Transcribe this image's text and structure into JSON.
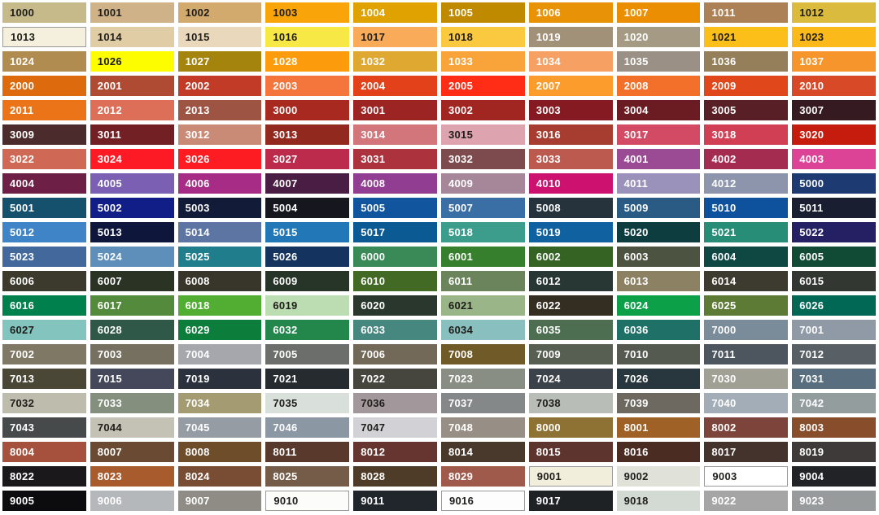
{
  "chart_data": {
    "type": "table",
    "rows": 21,
    "columns": 10,
    "legend_position": "none",
    "styles": {
      "gap_color": "#ffffff",
      "dark_text": "#1e1d1a",
      "light_text": "#ffffff",
      "light_swatch_border": "#9a9a9a"
    },
    "cells": [
      {
        "code": "1000",
        "bg": "#C6BA8B",
        "fg": "d"
      },
      {
        "code": "1001",
        "bg": "#CFB287",
        "fg": "d"
      },
      {
        "code": "1002",
        "bg": "#D3AA6E",
        "fg": "d"
      },
      {
        "code": "1003",
        "bg": "#F9A408",
        "fg": "d"
      },
      {
        "code": "1004",
        "bg": "#E0A200",
        "fg": "l"
      },
      {
        "code": "1005",
        "bg": "#C08A00",
        "fg": "l"
      },
      {
        "code": "1006",
        "bg": "#E89307",
        "fg": "l"
      },
      {
        "code": "1007",
        "bg": "#EC8E01",
        "fg": "l"
      },
      {
        "code": "1011",
        "bg": "#AC8156",
        "fg": "l"
      },
      {
        "code": "1012",
        "bg": "#DBBB3E",
        "fg": "d"
      },
      {
        "code": "1013",
        "bg": "#F5F0DE",
        "fg": "d",
        "bd": true
      },
      {
        "code": "1014",
        "bg": "#E0CDA5",
        "fg": "d"
      },
      {
        "code": "1015",
        "bg": "#E9D8BC",
        "fg": "d"
      },
      {
        "code": "1016",
        "bg": "#F7E845",
        "fg": "d"
      },
      {
        "code": "1017",
        "bg": "#FAAB59",
        "fg": "d"
      },
      {
        "code": "1018",
        "bg": "#FBC940",
        "fg": "d"
      },
      {
        "code": "1019",
        "bg": "#A29179",
        "fg": "l"
      },
      {
        "code": "1020",
        "bg": "#A59A83",
        "fg": "l"
      },
      {
        "code": "1021",
        "bg": "#FCBE19",
        "fg": "d"
      },
      {
        "code": "1023",
        "bg": "#FBBA19",
        "fg": "d"
      },
      {
        "code": "1024",
        "bg": "#B08C51",
        "fg": "l"
      },
      {
        "code": "1026",
        "bg": "#FEFD00",
        "fg": "d"
      },
      {
        "code": "1027",
        "bg": "#A5840D",
        "fg": "l"
      },
      {
        "code": "1028",
        "bg": "#FC9C0D",
        "fg": "l"
      },
      {
        "code": "1032",
        "bg": "#DFA831",
        "fg": "l"
      },
      {
        "code": "1033",
        "bg": "#F9A43B",
        "fg": "l"
      },
      {
        "code": "1034",
        "bg": "#F7A063",
        "fg": "l"
      },
      {
        "code": "1035",
        "bg": "#9A9086",
        "fg": "l"
      },
      {
        "code": "1036",
        "bg": "#957F5B",
        "fg": "l"
      },
      {
        "code": "1037",
        "bg": "#F5952B",
        "fg": "l"
      },
      {
        "code": "2000",
        "bg": "#DD6B0D",
        "fg": "l"
      },
      {
        "code": "2001",
        "bg": "#B04B33",
        "fg": "l"
      },
      {
        "code": "2002",
        "bg": "#C23B26",
        "fg": "l"
      },
      {
        "code": "2003",
        "bg": "#F5763C",
        "fg": "l"
      },
      {
        "code": "2004",
        "bg": "#E34119",
        "fg": "l"
      },
      {
        "code": "2005",
        "bg": "#FF2D16",
        "fg": "l"
      },
      {
        "code": "2007",
        "bg": "#FB9C2C",
        "fg": "l"
      },
      {
        "code": "2008",
        "bg": "#F3702B",
        "fg": "l"
      },
      {
        "code": "2009",
        "bg": "#E0471B",
        "fg": "l"
      },
      {
        "code": "2010",
        "bg": "#D84A27",
        "fg": "l"
      },
      {
        "code": "2011",
        "bg": "#EC7418",
        "fg": "l"
      },
      {
        "code": "2012",
        "bg": "#DD6E58",
        "fg": "l"
      },
      {
        "code": "2013",
        "bg": "#9D5443",
        "fg": "l"
      },
      {
        "code": "3000",
        "bg": "#A72920",
        "fg": "l"
      },
      {
        "code": "3001",
        "bg": "#9C2423",
        "fg": "l"
      },
      {
        "code": "3002",
        "bg": "#A12622",
        "fg": "l"
      },
      {
        "code": "3003",
        "bg": "#861A22",
        "fg": "l"
      },
      {
        "code": "3004",
        "bg": "#6B1C23",
        "fg": "l"
      },
      {
        "code": "3005",
        "bg": "#581F26",
        "fg": "l"
      },
      {
        "code": "3007",
        "bg": "#351B21",
        "fg": "l"
      },
      {
        "code": "3009",
        "bg": "#4C2B2C",
        "fg": "l"
      },
      {
        "code": "3011",
        "bg": "#732025",
        "fg": "l"
      },
      {
        "code": "3012",
        "bg": "#C98A76",
        "fg": "l"
      },
      {
        "code": "3013",
        "bg": "#91291F",
        "fg": "l"
      },
      {
        "code": "3014",
        "bg": "#D2767C",
        "fg": "l"
      },
      {
        "code": "3015",
        "bg": "#DDA3AE",
        "fg": "d"
      },
      {
        "code": "3016",
        "bg": "#A63D30",
        "fg": "l"
      },
      {
        "code": "3017",
        "bg": "#D24A63",
        "fg": "l"
      },
      {
        "code": "3018",
        "bg": "#D03F54",
        "fg": "l"
      },
      {
        "code": "3020",
        "bg": "#C61C0E",
        "fg": "l"
      },
      {
        "code": "3022",
        "bg": "#CF6955",
        "fg": "l"
      },
      {
        "code": "3024",
        "bg": "#FD1A25",
        "fg": "l"
      },
      {
        "code": "3026",
        "bg": "#FC1C22",
        "fg": "l"
      },
      {
        "code": "3027",
        "bg": "#BC2A4C",
        "fg": "l"
      },
      {
        "code": "3031",
        "bg": "#AC333E",
        "fg": "l"
      },
      {
        "code": "3032",
        "bg": "#7D4A4D",
        "fg": "l"
      },
      {
        "code": "3033",
        "bg": "#BC5A50",
        "fg": "l"
      },
      {
        "code": "4001",
        "bg": "#9A4B93",
        "fg": "l"
      },
      {
        "code": "4002",
        "bg": "#A52C51",
        "fg": "l"
      },
      {
        "code": "4003",
        "bg": "#DC4397",
        "fg": "l"
      },
      {
        "code": "4004",
        "bg": "#6E1F45",
        "fg": "l"
      },
      {
        "code": "4005",
        "bg": "#7A5FB2",
        "fg": "l"
      },
      {
        "code": "4006",
        "bg": "#A72C85",
        "fg": "l"
      },
      {
        "code": "4007",
        "bg": "#4A1E44",
        "fg": "l"
      },
      {
        "code": "4008",
        "bg": "#913D92",
        "fg": "l"
      },
      {
        "code": "4009",
        "bg": "#A68799",
        "fg": "l"
      },
      {
        "code": "4010",
        "bg": "#CC116F",
        "fg": "l"
      },
      {
        "code": "4011",
        "bg": "#9A92BA",
        "fg": "l"
      },
      {
        "code": "4012",
        "bg": "#8D95AD",
        "fg": "l"
      },
      {
        "code": "5000",
        "bg": "#1D3B72",
        "fg": "l"
      },
      {
        "code": "5001",
        "bg": "#15506C",
        "fg": "l"
      },
      {
        "code": "5002",
        "bg": "#111E88",
        "fg": "l"
      },
      {
        "code": "5003",
        "bg": "#121B38",
        "fg": "l"
      },
      {
        "code": "5004",
        "bg": "#16161E",
        "fg": "l"
      },
      {
        "code": "5005",
        "bg": "#10559D",
        "fg": "l"
      },
      {
        "code": "5007",
        "bg": "#3A6FA5",
        "fg": "l"
      },
      {
        "code": "5008",
        "bg": "#26333C",
        "fg": "l"
      },
      {
        "code": "5009",
        "bg": "#2A5B84",
        "fg": "l"
      },
      {
        "code": "5010",
        "bg": "#0E519D",
        "fg": "l"
      },
      {
        "code": "5011",
        "bg": "#191F30",
        "fg": "l"
      },
      {
        "code": "5012",
        "bg": "#3E84C6",
        "fg": "l"
      },
      {
        "code": "5013",
        "bg": "#0E163C",
        "fg": "l"
      },
      {
        "code": "5014",
        "bg": "#5C75A2",
        "fg": "l"
      },
      {
        "code": "5015",
        "bg": "#2277B6",
        "fg": "l"
      },
      {
        "code": "5017",
        "bg": "#0C5A94",
        "fg": "l"
      },
      {
        "code": "5018",
        "bg": "#3D9D8C",
        "fg": "l"
      },
      {
        "code": "5019",
        "bg": "#1061A0",
        "fg": "l"
      },
      {
        "code": "5020",
        "bg": "#0D3D3E",
        "fg": "l"
      },
      {
        "code": "5021",
        "bg": "#288D77",
        "fg": "l"
      },
      {
        "code": "5022",
        "bg": "#242063",
        "fg": "l"
      },
      {
        "code": "5023",
        "bg": "#42689C",
        "fg": "l"
      },
      {
        "code": "5024",
        "bg": "#5E8FBA",
        "fg": "l"
      },
      {
        "code": "5025",
        "bg": "#207D8B",
        "fg": "l"
      },
      {
        "code": "5026",
        "bg": "#14335E",
        "fg": "l"
      },
      {
        "code": "6000",
        "bg": "#398A57",
        "fg": "l"
      },
      {
        "code": "6001",
        "bg": "#36802D",
        "fg": "l"
      },
      {
        "code": "6002",
        "bg": "#356323",
        "fg": "l"
      },
      {
        "code": "6003",
        "bg": "#4D5341",
        "fg": "l"
      },
      {
        "code": "6004",
        "bg": "#0F4743",
        "fg": "l"
      },
      {
        "code": "6005",
        "bg": "#114A35",
        "fg": "l"
      },
      {
        "code": "6006",
        "bg": "#3B3A2D",
        "fg": "l"
      },
      {
        "code": "6007",
        "bg": "#2B3325",
        "fg": "l"
      },
      {
        "code": "6008",
        "bg": "#38362A",
        "fg": "l"
      },
      {
        "code": "6009",
        "bg": "#273428",
        "fg": "l"
      },
      {
        "code": "6010",
        "bg": "#426A25",
        "fg": "l"
      },
      {
        "code": "6011",
        "bg": "#6C845C",
        "fg": "l"
      },
      {
        "code": "6012",
        "bg": "#293734",
        "fg": "l"
      },
      {
        "code": "6013",
        "bg": "#8C8163",
        "fg": "l"
      },
      {
        "code": "6014",
        "bg": "#3D3A2F",
        "fg": "l"
      },
      {
        "code": "6015",
        "bg": "#333731",
        "fg": "l"
      },
      {
        "code": "6016",
        "bg": "#00804C",
        "fg": "l"
      },
      {
        "code": "6017",
        "bg": "#538A3B",
        "fg": "l"
      },
      {
        "code": "6018",
        "bg": "#51AE32",
        "fg": "l"
      },
      {
        "code": "6019",
        "bg": "#BCDCB2",
        "fg": "d"
      },
      {
        "code": "6020",
        "bg": "#2A372C",
        "fg": "l"
      },
      {
        "code": "6021",
        "bg": "#9AB588",
        "fg": "d"
      },
      {
        "code": "6022",
        "bg": "#342D21",
        "fg": "l"
      },
      {
        "code": "6024",
        "bg": "#0CA148",
        "fg": "l"
      },
      {
        "code": "6025",
        "bg": "#5E7B36",
        "fg": "l"
      },
      {
        "code": "6026",
        "bg": "#026856",
        "fg": "l"
      },
      {
        "code": "6027",
        "bg": "#84C4BE",
        "fg": "d"
      },
      {
        "code": "6028",
        "bg": "#2F5848",
        "fg": "l"
      },
      {
        "code": "6029",
        "bg": "#0C7D3B",
        "fg": "l"
      },
      {
        "code": "6032",
        "bg": "#23874C",
        "fg": "l"
      },
      {
        "code": "6033",
        "bg": "#46877F",
        "fg": "l"
      },
      {
        "code": "6034",
        "bg": "#89BFBF",
        "fg": "d"
      },
      {
        "code": "6035",
        "bg": "#4E6E51",
        "fg": "l"
      },
      {
        "code": "6036",
        "bg": "#1F7168",
        "fg": "l"
      },
      {
        "code": "7000",
        "bg": "#7A8B9A",
        "fg": "l"
      },
      {
        "code": "7001",
        "bg": "#8F9AA6",
        "fg": "l"
      },
      {
        "code": "7002",
        "bg": "#7E7865",
        "fg": "l"
      },
      {
        "code": "7003",
        "bg": "#757060",
        "fg": "l"
      },
      {
        "code": "7004",
        "bg": "#A6A7AD",
        "fg": "l"
      },
      {
        "code": "7005",
        "bg": "#6B6E6B",
        "fg": "l"
      },
      {
        "code": "7006",
        "bg": "#736959",
        "fg": "l"
      },
      {
        "code": "7008",
        "bg": "#705A28",
        "fg": "l"
      },
      {
        "code": "7009",
        "bg": "#575E52",
        "fg": "l"
      },
      {
        "code": "7010",
        "bg": "#545A50",
        "fg": "l"
      },
      {
        "code": "7011",
        "bg": "#4D565F",
        "fg": "l"
      },
      {
        "code": "7012",
        "bg": "#586065",
        "fg": "l"
      },
      {
        "code": "7013",
        "bg": "#4B4737",
        "fg": "l"
      },
      {
        "code": "7015",
        "bg": "#44485A",
        "fg": "l"
      },
      {
        "code": "7019",
        "bg": "#2B323E",
        "fg": "l"
      },
      {
        "code": "7021",
        "bg": "#262B30",
        "fg": "l"
      },
      {
        "code": "7022",
        "bg": "#46453E",
        "fg": "l"
      },
      {
        "code": "7023",
        "bg": "#898E85",
        "fg": "l"
      },
      {
        "code": "7024",
        "bg": "#3B424A",
        "fg": "l"
      },
      {
        "code": "7026",
        "bg": "#28373E",
        "fg": "l"
      },
      {
        "code": "7030",
        "bg": "#A1A095",
        "fg": "l"
      },
      {
        "code": "7031",
        "bg": "#596F80",
        "fg": "l"
      },
      {
        "code": "7032",
        "bg": "#BDBCAD",
        "fg": "d"
      },
      {
        "code": "7033",
        "bg": "#848F7D",
        "fg": "l"
      },
      {
        "code": "7034",
        "bg": "#A49B73",
        "fg": "l"
      },
      {
        "code": "7035",
        "bg": "#D9E0DB",
        "fg": "d"
      },
      {
        "code": "7036",
        "bg": "#A2979A",
        "fg": "d"
      },
      {
        "code": "7037",
        "bg": "#858889",
        "fg": "l"
      },
      {
        "code": "7038",
        "bg": "#B8BDB7",
        "fg": "d"
      },
      {
        "code": "7039",
        "bg": "#6D6960",
        "fg": "l"
      },
      {
        "code": "7040",
        "bg": "#A3ADB7",
        "fg": "l"
      },
      {
        "code": "7042",
        "bg": "#949D9D",
        "fg": "l"
      },
      {
        "code": "7043",
        "bg": "#464A4B",
        "fg": "l"
      },
      {
        "code": "7044",
        "bg": "#C3C2B4",
        "fg": "d"
      },
      {
        "code": "7045",
        "bg": "#959CA3",
        "fg": "l"
      },
      {
        "code": "7046",
        "bg": "#8B97A3",
        "fg": "l"
      },
      {
        "code": "7047",
        "bg": "#D2D2D6",
        "fg": "d"
      },
      {
        "code": "7048",
        "bg": "#978F85",
        "fg": "l"
      },
      {
        "code": "8000",
        "bg": "#8D7233",
        "fg": "l"
      },
      {
        "code": "8001",
        "bg": "#9F6126",
        "fg": "l"
      },
      {
        "code": "8002",
        "bg": "#7C443A",
        "fg": "l"
      },
      {
        "code": "8003",
        "bg": "#884D2B",
        "fg": "l"
      },
      {
        "code": "8004",
        "bg": "#A5513D",
        "fg": "l"
      },
      {
        "code": "8007",
        "bg": "#6A4A32",
        "fg": "l"
      },
      {
        "code": "8008",
        "bg": "#6E4D2B",
        "fg": "l"
      },
      {
        "code": "8011",
        "bg": "#58392B",
        "fg": "l"
      },
      {
        "code": "8012",
        "bg": "#66352F",
        "fg": "l"
      },
      {
        "code": "8014",
        "bg": "#49392D",
        "fg": "l"
      },
      {
        "code": "8015",
        "bg": "#5E342E",
        "fg": "l"
      },
      {
        "code": "8016",
        "bg": "#4A2C23",
        "fg": "l"
      },
      {
        "code": "8017",
        "bg": "#44322D",
        "fg": "l"
      },
      {
        "code": "8019",
        "bg": "#3F3A3A",
        "fg": "l"
      },
      {
        "code": "8022",
        "bg": "#1A181B",
        "fg": "l"
      },
      {
        "code": "8023",
        "bg": "#A85C2E",
        "fg": "l"
      },
      {
        "code": "8024",
        "bg": "#794D33",
        "fg": "l"
      },
      {
        "code": "8025",
        "bg": "#755C48",
        "fg": "l"
      },
      {
        "code": "8028",
        "bg": "#4E3C28",
        "fg": "l"
      },
      {
        "code": "8029",
        "bg": "#A05A4C",
        "fg": "l"
      },
      {
        "code": "9001",
        "bg": "#F2EEDC",
        "fg": "d",
        "bd": true
      },
      {
        "code": "9002",
        "bg": "#E0E1D9",
        "fg": "d"
      },
      {
        "code": "9003",
        "bg": "#FFFFFF",
        "fg": "d",
        "bd": true
      },
      {
        "code": "9004",
        "bg": "#222326",
        "fg": "l"
      },
      {
        "code": "9005",
        "bg": "#0C0C0E",
        "fg": "l"
      },
      {
        "code": "9006",
        "bg": "#B4B8BB",
        "fg": "l"
      },
      {
        "code": "9007",
        "bg": "#8F8C86",
        "fg": "l"
      },
      {
        "code": "9010",
        "bg": "#FCFCFA",
        "fg": "d",
        "bd": true
      },
      {
        "code": "9011",
        "bg": "#20262B",
        "fg": "l"
      },
      {
        "code": "9016",
        "bg": "#FDFDFD",
        "fg": "d",
        "bd": true
      },
      {
        "code": "9017",
        "bg": "#1E2225",
        "fg": "l"
      },
      {
        "code": "9018",
        "bg": "#D3DAD4",
        "fg": "d"
      },
      {
        "code": "9022",
        "bg": "#A5A5A5",
        "fg": "l"
      },
      {
        "code": "9023",
        "bg": "#989B9C",
        "fg": "l"
      }
    ]
  }
}
